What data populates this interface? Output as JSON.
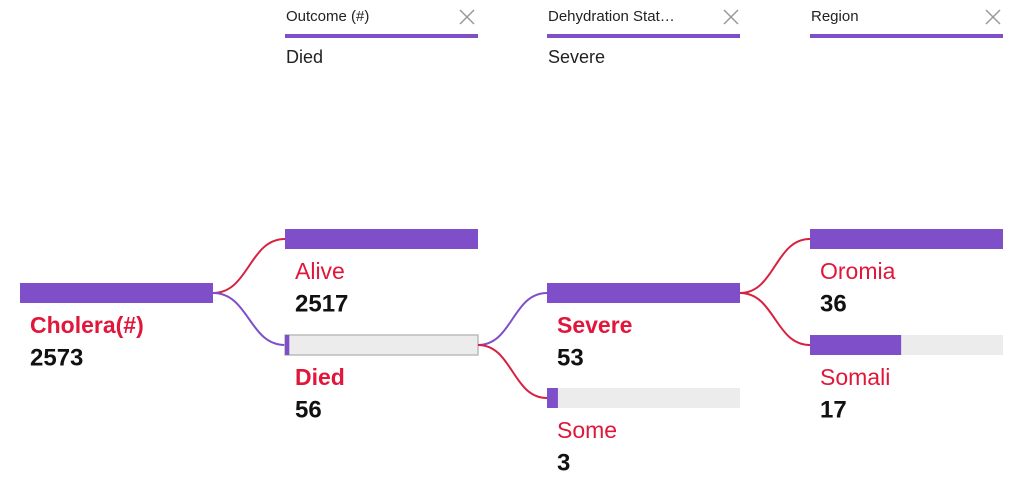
{
  "filters": [
    {
      "title": "Outcome (#)",
      "value": "Died"
    },
    {
      "title": "Dehydration Stat…",
      "value": "Severe"
    },
    {
      "title": "Region"
    }
  ],
  "tree": {
    "root": {
      "label": "Cholera(#)",
      "value": 2573
    },
    "levels": [
      {
        "selected": 1,
        "nodes": [
          {
            "label": "Alive",
            "value": 2517
          },
          {
            "label": "Died",
            "value": 56
          }
        ]
      },
      {
        "selected": 0,
        "nodes": [
          {
            "label": "Severe",
            "value": 53
          },
          {
            "label": "Some",
            "value": 3
          }
        ]
      },
      {
        "selected": null,
        "nodes": [
          {
            "label": "Oromia",
            "value": 36
          },
          {
            "label": "Somali",
            "value": 17
          }
        ]
      }
    ]
  }
}
